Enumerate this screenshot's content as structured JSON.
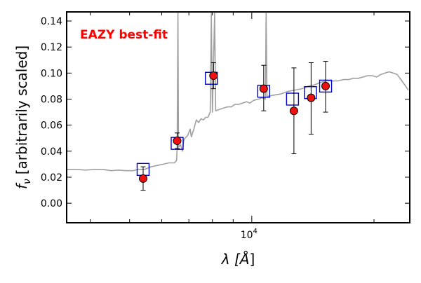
{
  "chart_data": {
    "type": "scatter",
    "title": "",
    "annotation": "EAZY best-fit",
    "xlabel_main": "λ [",
    "xlabel_unit": "Å",
    "xlabel_close": "]",
    "ylabel_symbol": "f",
    "ylabel_sub": "ν",
    "ylabel_text": "[arbitrarily scaled]",
    "xscale": "log",
    "xlim": [
      3500,
      24500
    ],
    "ylim": [
      -0.015,
      0.147
    ],
    "x_ticks": [
      {
        "value": 10000,
        "base": "10",
        "exp": "4"
      }
    ],
    "y_ticks": [
      {
        "value": 0.0,
        "label": "0.00"
      },
      {
        "value": 0.02,
        "label": "0.02"
      },
      {
        "value": 0.04,
        "label": "0.04"
      },
      {
        "value": 0.06,
        "label": "0.06"
      },
      {
        "value": 0.08,
        "label": "0.08"
      },
      {
        "value": 0.1,
        "label": "0.10"
      },
      {
        "value": 0.12,
        "label": "0.12"
      },
      {
        "value": 0.14,
        "label": "0.14"
      }
    ],
    "observed": [
      {
        "x": 5400,
        "y": 0.019,
        "err_low": 0.01,
        "err_high": 0.028
      },
      {
        "x": 6550,
        "y": 0.048,
        "err_low": 0.042,
        "err_high": 0.054
      },
      {
        "x": 8050,
        "y": 0.098,
        "err_low": 0.088,
        "err_high": 0.108
      },
      {
        "x": 10700,
        "y": 0.088,
        "err_low": 0.071,
        "err_high": 0.106
      },
      {
        "x": 12700,
        "y": 0.071,
        "err_low": 0.038,
        "err_high": 0.104
      },
      {
        "x": 14000,
        "y": 0.081,
        "err_low": 0.053,
        "err_high": 0.108
      },
      {
        "x": 15200,
        "y": 0.09,
        "err_low": 0.07,
        "err_high": 0.109
      }
    ],
    "model_points": [
      {
        "x": 5400,
        "y": 0.026
      },
      {
        "x": 6550,
        "y": 0.046
      },
      {
        "x": 7950,
        "y": 0.096
      },
      {
        "x": 10700,
        "y": 0.086
      },
      {
        "x": 12600,
        "y": 0.08
      },
      {
        "x": 13950,
        "y": 0.085
      },
      {
        "x": 15200,
        "y": 0.09
      }
    ],
    "spectrum": [
      [
        3500,
        0.026
      ],
      [
        3700,
        0.026
      ],
      [
        3900,
        0.0255
      ],
      [
        4100,
        0.026
      ],
      [
        4300,
        0.026
      ],
      [
        4500,
        0.025
      ],
      [
        4700,
        0.0255
      ],
      [
        4900,
        0.025
      ],
      [
        5100,
        0.025
      ],
      [
        5250,
        0.026
      ],
      [
        5450,
        0.026
      ],
      [
        5650,
        0.028
      ],
      [
        5850,
        0.029
      ],
      [
        6050,
        0.03
      ],
      [
        6250,
        0.031
      ],
      [
        6450,
        0.031
      ],
      [
        6530,
        0.033
      ],
      [
        6550,
        0.043
      ],
      [
        6580,
        0.146
      ],
      [
        6600,
        0.043
      ],
      [
        6680,
        0.045
      ],
      [
        6750,
        0.04
      ],
      [
        6800,
        0.048
      ],
      [
        6850,
        0.05
      ],
      [
        6950,
        0.052
      ],
      [
        7050,
        0.057
      ],
      [
        7100,
        0.051
      ],
      [
        7200,
        0.057
      ],
      [
        7300,
        0.064
      ],
      [
        7400,
        0.062
      ],
      [
        7500,
        0.065
      ],
      [
        7600,
        0.064
      ],
      [
        7700,
        0.066
      ],
      [
        7800,
        0.066
      ],
      [
        7900,
        0.07
      ],
      [
        7950,
        0.146
      ],
      [
        8000,
        0.07
      ],
      [
        8100,
        0.146
      ],
      [
        8150,
        0.071
      ],
      [
        8300,
        0.072
      ],
      [
        8500,
        0.073
      ],
      [
        8700,
        0.074
      ],
      [
        8900,
        0.074
      ],
      [
        9100,
        0.076
      ],
      [
        9300,
        0.076
      ],
      [
        9500,
        0.077
      ],
      [
        9700,
        0.078
      ],
      [
        9900,
        0.077
      ],
      [
        10100,
        0.079
      ],
      [
        10400,
        0.08
      ],
      [
        10600,
        0.081
      ],
      [
        10800,
        0.08
      ],
      [
        10850,
        0.146
      ],
      [
        10900,
        0.082
      ],
      [
        11300,
        0.083
      ],
      [
        11800,
        0.084
      ],
      [
        12300,
        0.086
      ],
      [
        12800,
        0.087
      ],
      [
        13300,
        0.088
      ],
      [
        13800,
        0.09
      ],
      [
        14300,
        0.091
      ],
      [
        14800,
        0.093
      ],
      [
        15300,
        0.094
      ],
      [
        15800,
        0.094
      ],
      [
        16300,
        0.094
      ],
      [
        16800,
        0.095
      ],
      [
        17300,
        0.095
      ],
      [
        17800,
        0.096
      ],
      [
        18300,
        0.096
      ],
      [
        18800,
        0.097
      ],
      [
        19300,
        0.098
      ],
      [
        19800,
        0.098
      ],
      [
        20300,
        0.097
      ],
      [
        20800,
        0.099
      ],
      [
        21300,
        0.1
      ],
      [
        21800,
        0.101
      ],
      [
        22300,
        0.1
      ],
      [
        22800,
        0.099
      ],
      [
        23300,
        0.095
      ],
      [
        23800,
        0.091
      ],
      [
        24300,
        0.087
      ]
    ],
    "colors": {
      "spectrum": "#a0a0a0",
      "observed_fill": "#ee1111",
      "observed_edge": "#000000",
      "model_edge": "#0000cc",
      "annotation": "#ff0000",
      "axis": "#000000"
    },
    "grid": false,
    "legend": "none"
  }
}
